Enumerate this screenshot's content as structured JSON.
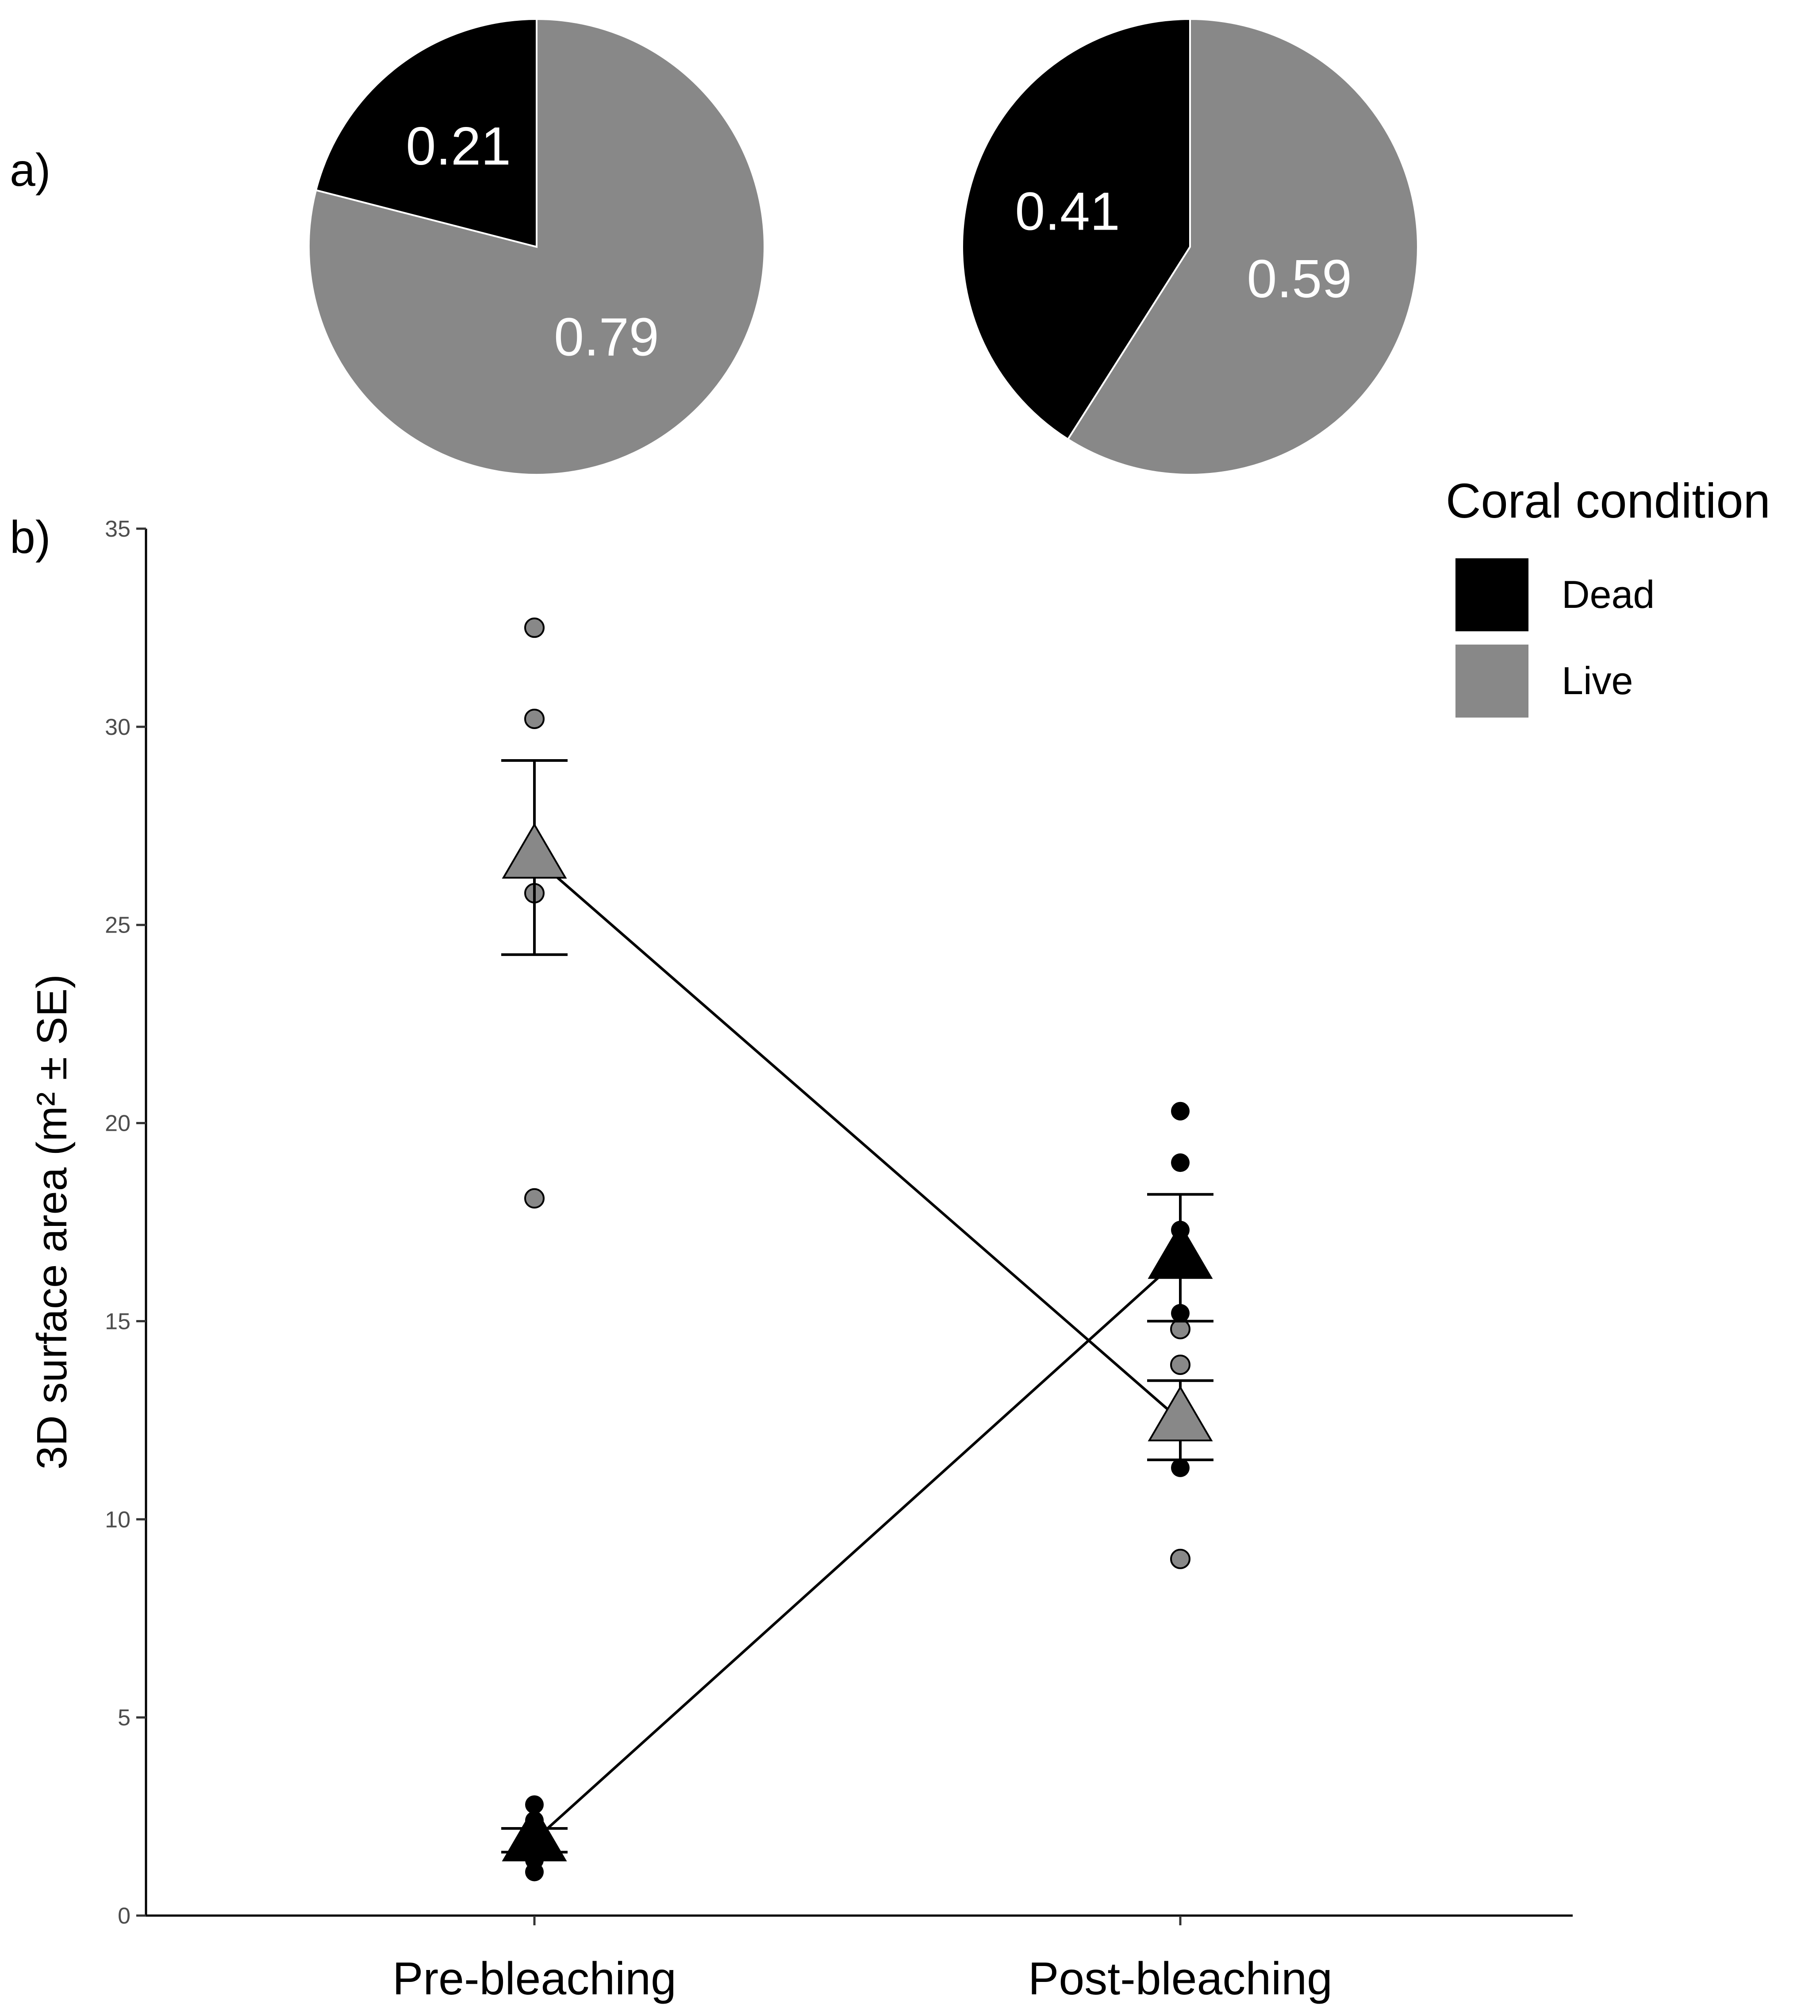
{
  "chart_data": [
    {
      "type": "pie",
      "panel": "a)",
      "title": "Pre-bleaching",
      "slices": [
        {
          "label": "Dead",
          "value": 0.21,
          "text": "0.21",
          "color": "#000000"
        },
        {
          "label": "Live",
          "value": 0.79,
          "text": "0.79",
          "color": "#888888"
        }
      ]
    },
    {
      "type": "pie",
      "title": "Post-bleaching",
      "slices": [
        {
          "label": "Dead",
          "value": 0.41,
          "text": "0.41",
          "color": "#000000"
        },
        {
          "label": "Live",
          "value": 0.59,
          "text": "0.59",
          "color": "#888888"
        }
      ]
    },
    {
      "type": "scatter",
      "panel": "b)",
      "categories": [
        "Pre-bleaching",
        "Post-bleaching"
      ],
      "xlabel": "",
      "ylabel": "3D surface area (m² ± SE)",
      "ylim": [
        0,
        35
      ],
      "yticks": [
        "0",
        "5",
        "10",
        "15",
        "20",
        "25",
        "30",
        "35"
      ],
      "legend": {
        "title": "Coral condition",
        "entries": [
          {
            "label": "Dead",
            "color": "#000000"
          },
          {
            "label": "Live",
            "color": "#888888"
          }
        ]
      },
      "series": [
        {
          "name": "Dead",
          "color": "#000000",
          "points": [
            [
              0,
              2.8
            ],
            [
              0,
              2.4
            ],
            [
              0,
              1.4
            ],
            [
              0,
              1.1
            ],
            [
              1,
              20.3
            ],
            [
              1,
              19.0
            ],
            [
              1,
              17.3
            ],
            [
              1,
              15.2
            ],
            [
              1,
              11.3
            ]
          ],
          "means": [
            1.9,
            16.6
          ],
          "se": [
            0.3,
            1.6
          ]
        },
        {
          "name": "Live",
          "color": "#888888",
          "points": [
            [
              0,
              32.5
            ],
            [
              0,
              30.2
            ],
            [
              0,
              25.8
            ],
            [
              0,
              18.1
            ],
            [
              1,
              14.8
            ],
            [
              1,
              13.9
            ],
            [
              1,
              9.0
            ]
          ],
          "means": [
            26.7,
            12.5
          ],
          "se": [
            2.45,
            1.0
          ]
        }
      ]
    }
  ]
}
